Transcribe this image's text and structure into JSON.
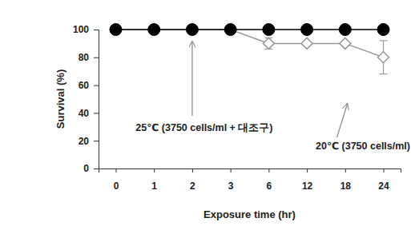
{
  "chart_data": {
    "type": "line",
    "x_label": "Exposure time (hr)",
    "y_label": "Survival (%)",
    "categories": [
      "0",
      "1",
      "2",
      "3",
      "6",
      "12",
      "18",
      "24"
    ],
    "series": [
      {
        "name": "25℃ (3750 cells/ml + 대조구)",
        "color": "#000000",
        "marker": "circle",
        "line_style": "solid",
        "values": [
          100,
          100,
          100,
          100,
          100,
          100,
          100,
          100
        ]
      },
      {
        "name": "20℃ (3750 cells/ml)",
        "color": "#999999",
        "marker": "diamond",
        "line_style": "solid",
        "values": [
          100,
          100,
          100,
          100,
          90,
          90,
          90,
          80
        ],
        "error": [
          null,
          null,
          null,
          null,
          4,
          null,
          null,
          12
        ]
      }
    ],
    "ylim": [
      0,
      100
    ],
    "yticks": [
      0,
      20,
      40,
      60,
      80,
      100
    ],
    "grid": false
  }
}
